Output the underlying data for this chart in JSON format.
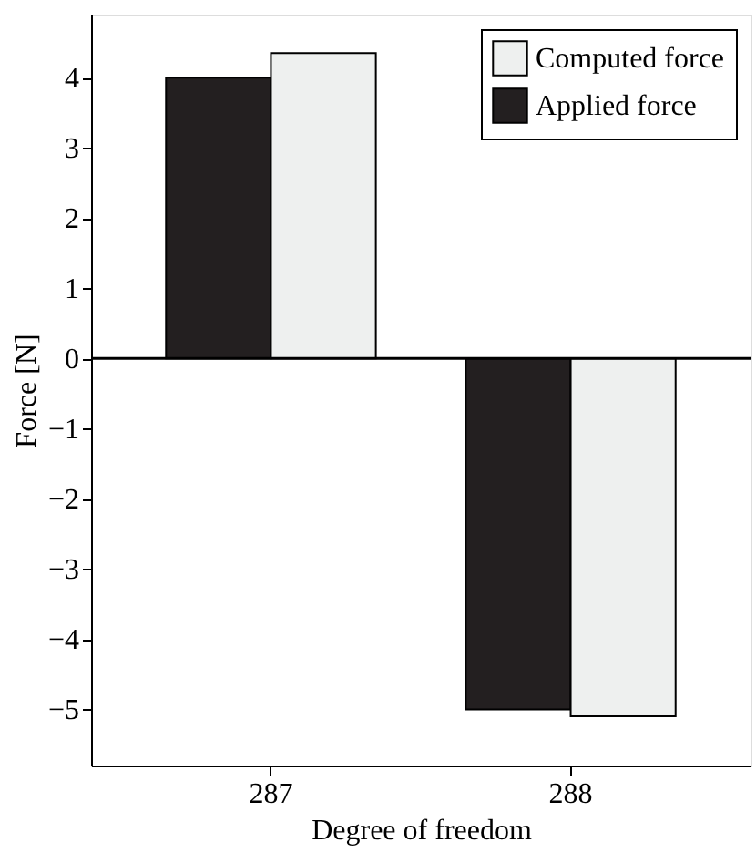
{
  "chart_data": {
    "type": "bar",
    "xlabel": "Degree of freedom",
    "ylabel": "Force [N]",
    "categories": [
      "287",
      "288"
    ],
    "series": [
      {
        "name": "Applied force",
        "color": "#231f20",
        "values": [
          4,
          -5
        ]
      },
      {
        "name": "Computed force",
        "color": "#eef0ef",
        "values": [
          4.35,
          -5.1
        ]
      }
    ],
    "ylim": [
      -5.8,
      4.9
    ],
    "yticks": [
      -5,
      -4,
      -3,
      -2,
      -1,
      0,
      1,
      2,
      3,
      4
    ],
    "ref_lines": [
      {
        "axis": "y",
        "value": 0
      }
    ],
    "grid": false,
    "legend": "top right"
  }
}
